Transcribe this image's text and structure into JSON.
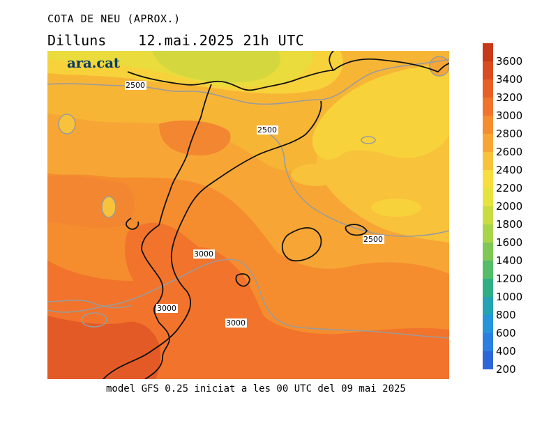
{
  "header": {
    "title": "COTA DE NEU (APROX.)",
    "day": "Dilluns",
    "datetime": "12.mai.2025 21h UTC"
  },
  "brand": {
    "logo_text": "ara.cat"
  },
  "footer": {
    "caption": "model GFS 0.25 iniciat a les 00 UTC del 09 mai 2025"
  },
  "legend": {
    "levels": [
      3600,
      3400,
      3200,
      3000,
      2800,
      2600,
      2400,
      2200,
      2000,
      1800,
      1600,
      1400,
      1200,
      1000,
      800,
      600,
      400,
      200
    ],
    "colors": [
      "#c8391a",
      "#d94b20",
      "#e85e27",
      "#f2732b",
      "#f58d2f",
      "#f7a635",
      "#f8c23a",
      "#f7dd3d",
      "#e8e23f",
      "#c9dc42",
      "#a8d44a",
      "#7fc856",
      "#55bc68",
      "#2fae85",
      "#23a3b4",
      "#2594d8",
      "#2b7fe0",
      "#2d66d8"
    ],
    "labels": [
      "3600",
      "3400",
      "3200",
      "3000",
      "2800",
      "2600",
      "2400",
      "2200",
      "2000",
      "1800",
      "1600",
      "1400",
      "1200",
      "1000",
      "800",
      "600",
      "400",
      "200"
    ]
  },
  "contour_labels": [
    "2500",
    "2500",
    "2500",
    "3000",
    "3000",
    "3000"
  ],
  "colors": {
    "band_1800_2000": "#d4d83e",
    "band_2000_2200": "#e9dc3c",
    "band_2200_2400": "#f8d23a",
    "band_2400_2600": "#f7b536",
    "band_2600_2800": "#f59c32",
    "band_2800_3000": "#f38630",
    "band_3000_3200": "#ee6e2b",
    "band_3200_3400": "#e35a26",
    "contour": "#9b9b9b",
    "coastline": "#111111"
  }
}
